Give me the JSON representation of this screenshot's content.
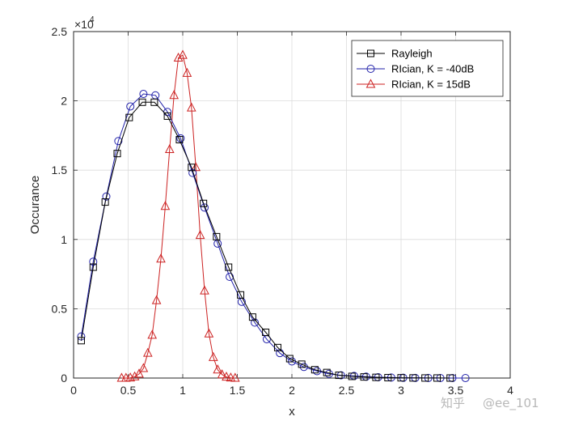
{
  "chart_data": {
    "type": "line",
    "xlabel": "x",
    "ylabel": "Occurance",
    "xlim": [
      0,
      4
    ],
    "ylim": [
      0,
      25000
    ],
    "x_ticks": [
      0,
      0.5,
      1,
      1.5,
      2,
      2.5,
      3,
      3.5,
      4
    ],
    "x_tick_labels": [
      "0",
      "0.5",
      "1",
      "1.5",
      "2",
      "2.5",
      "3",
      "3.5",
      "4"
    ],
    "y_ticks": [
      0,
      5000,
      10000,
      15000,
      20000,
      25000
    ],
    "y_tick_labels": [
      "0",
      "0.5",
      "1",
      "1.5",
      "2",
      "2.5"
    ],
    "y_multiplier_base": "×10",
    "y_multiplier_exp": "4",
    "grid": true,
    "legend_position": "top-right",
    "series": [
      {
        "name": "Rayleigh",
        "color": "#000000",
        "marker": "square",
        "x": [
          0.07,
          0.18,
          0.29,
          0.4,
          0.51,
          0.63,
          0.74,
          0.86,
          0.97,
          1.08,
          1.19,
          1.31,
          1.42,
          1.53,
          1.64,
          1.76,
          1.87,
          1.98,
          2.09,
          2.21,
          2.32,
          2.43,
          2.55,
          2.66,
          2.77,
          2.88,
          3.0,
          3.11,
          3.22,
          3.33,
          3.45
        ],
        "y": [
          2700,
          8000,
          12700,
          16200,
          18800,
          19900,
          19900,
          18900,
          17200,
          15200,
          12600,
          10200,
          8000,
          6000,
          4400,
          3300,
          2200,
          1400,
          1000,
          600,
          400,
          200,
          120,
          80,
          50,
          30,
          20,
          10,
          5,
          3,
          2
        ]
      },
      {
        "name": "RIcian, K = -40dB",
        "color": "#2222aa",
        "marker": "circle",
        "x": [
          0.07,
          0.18,
          0.3,
          0.41,
          0.52,
          0.64,
          0.75,
          0.86,
          0.98,
          1.09,
          1.2,
          1.32,
          1.43,
          1.54,
          1.66,
          1.77,
          1.89,
          2.0,
          2.11,
          2.23,
          2.34,
          2.45,
          2.57,
          2.68,
          2.79,
          2.91,
          3.02,
          3.13,
          3.25,
          3.36,
          3.47,
          3.59
        ],
        "y": [
          3000,
          8400,
          13100,
          17100,
          19600,
          20500,
          20400,
          19200,
          17300,
          14800,
          12300,
          9700,
          7300,
          5500,
          4000,
          2800,
          1800,
          1200,
          800,
          500,
          300,
          200,
          150,
          100,
          60,
          40,
          20,
          10,
          5,
          3,
          2,
          1
        ]
      },
      {
        "name": "RIcian, K = 15dB",
        "color": "#cc2222",
        "marker": "triangle",
        "x": [
          0.44,
          0.48,
          0.52,
          0.56,
          0.6,
          0.64,
          0.68,
          0.72,
          0.76,
          0.8,
          0.84,
          0.88,
          0.92,
          0.96,
          1.0,
          1.04,
          1.08,
          1.12,
          1.16,
          1.2,
          1.24,
          1.28,
          1.32,
          1.36,
          1.4,
          1.44,
          1.48
        ],
        "y": [
          0,
          0,
          20,
          100,
          300,
          700,
          1800,
          3100,
          5600,
          8600,
          12400,
          16500,
          20400,
          23100,
          23300,
          22000,
          19500,
          15200,
          10300,
          6300,
          3200,
          1500,
          600,
          250,
          80,
          20,
          0
        ]
      }
    ]
  },
  "watermark": {
    "site": "知乎",
    "handle": "@ee_101"
  }
}
